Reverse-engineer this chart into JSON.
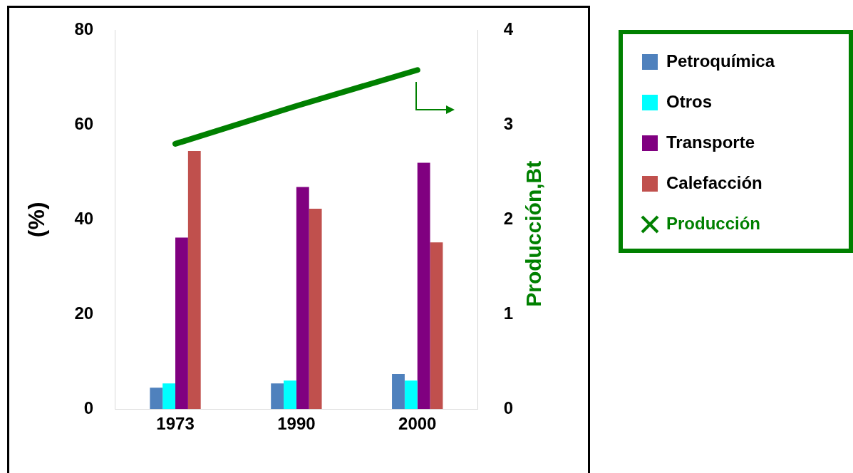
{
  "chart_data": {
    "type": "bar",
    "categories": [
      "1973",
      "1990",
      "2000"
    ],
    "ylabel": "(%)",
    "y2label": "Producción,Bt",
    "series": [
      {
        "name": "Petroquímica",
        "color": "#4f81bd",
        "values": [
          4.5,
          5.4,
          7.4
        ]
      },
      {
        "name": "Otros",
        "color": "#00ffff",
        "values": [
          5.4,
          6.0,
          6.0
        ]
      },
      {
        "name": "Transporte",
        "color": "#800080",
        "values": [
          36.2,
          46.9,
          52.0
        ]
      },
      {
        "name": "Calefacción",
        "color": "#c0504d",
        "values": [
          54.5,
          42.3,
          35.2
        ]
      },
      {
        "name": "Producción",
        "type": "line",
        "axis": "y2",
        "color": "#008000",
        "values": [
          2.8,
          3.2,
          3.58
        ]
      }
    ],
    "ylim": [
      0,
      80
    ],
    "yticks": [
      0,
      20,
      40,
      60,
      80
    ],
    "y2lim": [
      0,
      4
    ],
    "y2ticks": [
      0,
      1,
      2,
      3,
      4
    ],
    "legend": "top right",
    "marker": "none",
    "grid": false
  }
}
